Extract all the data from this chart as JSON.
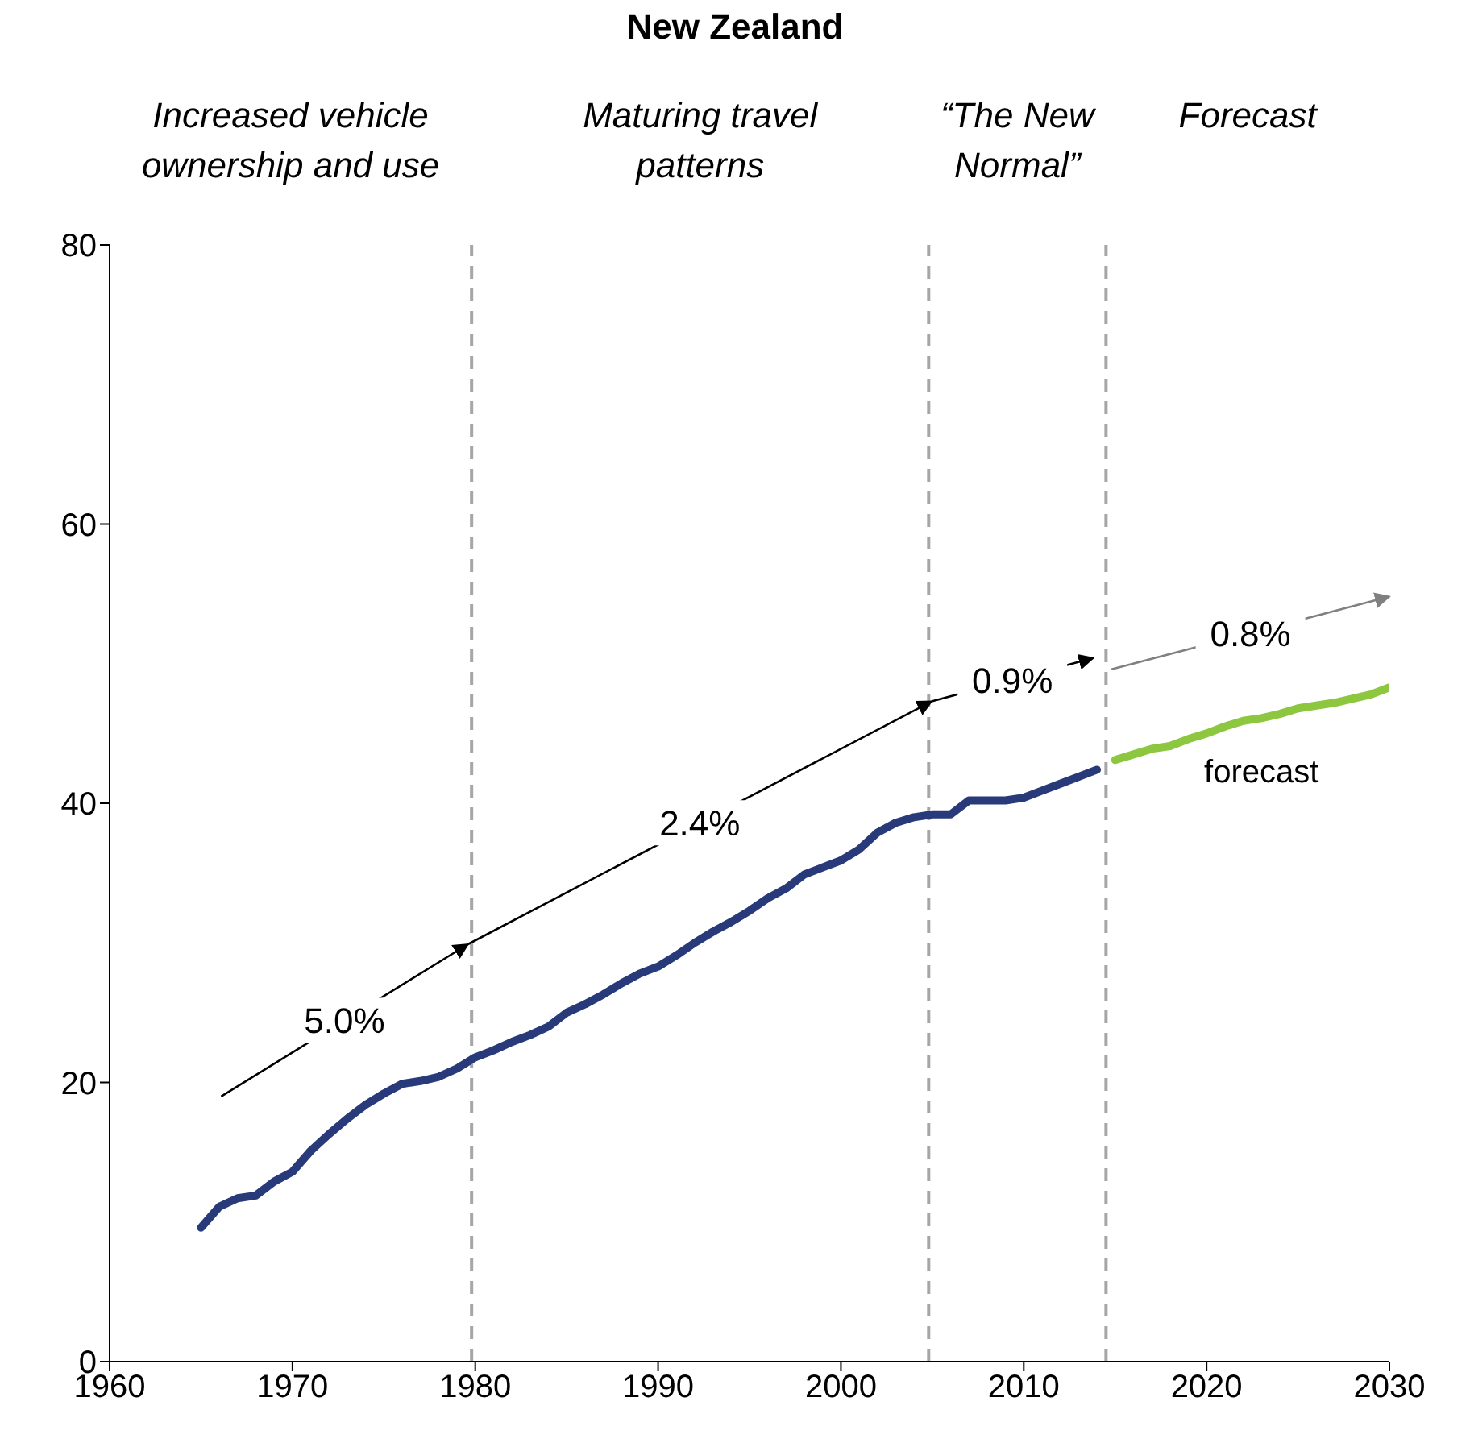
{
  "chart_data": {
    "type": "line",
    "title": "New Zealand",
    "xlim": [
      1960,
      2030
    ],
    "xticks": [
      1960,
      1970,
      1980,
      1990,
      2000,
      2010,
      2020,
      2030
    ],
    "ylim": [
      0,
      80
    ],
    "yticks": [
      0,
      20,
      40,
      60,
      80
    ],
    "marker": "none",
    "line_style": "solid",
    "series": [
      {
        "color": "#283a7a",
        "x": [
          1965,
          1966,
          1967,
          1968,
          1969,
          1970,
          1971,
          1972,
          1973,
          1974,
          1975,
          1976,
          1977,
          1978,
          1979,
          1980,
          1981,
          1982,
          1983,
          1984,
          1985,
          1986,
          1987,
          1988,
          1989,
          1990,
          1991,
          1992,
          1993,
          1994,
          1995,
          1996,
          1997,
          1998,
          1999,
          2000,
          2001,
          2002,
          2003,
          2004,
          2005,
          2006,
          2007,
          2008,
          2009,
          2010,
          2011,
          2012,
          2013,
          2014
        ],
        "values": [
          9.6,
          11.1,
          11.7,
          11.9,
          12.9,
          13.6,
          15.1,
          16.3,
          17.4,
          18.4,
          19.2,
          19.9,
          20.1,
          20.4,
          21.0,
          21.8,
          22.3,
          22.9,
          23.4,
          24.0,
          25.0,
          25.6,
          26.3,
          27.1,
          27.8,
          28.3,
          29.1,
          30.0,
          30.8,
          31.5,
          32.3,
          33.2,
          33.9,
          34.9,
          35.4,
          35.9,
          36.7,
          37.9,
          38.6,
          39.0,
          39.2,
          39.2,
          40.2,
          40.2,
          40.2,
          40.4,
          40.9,
          41.4,
          41.9,
          42.4
        ]
      },
      {
        "name": "forecast",
        "color": "#8dc63f",
        "x": [
          2015,
          2016,
          2017,
          2018,
          2019,
          2020,
          2021,
          2022,
          2023,
          2024,
          2025,
          2026,
          2027,
          2028,
          2029,
          2030
        ],
        "values": [
          43.1,
          43.5,
          43.9,
          44.1,
          44.6,
          45.0,
          45.5,
          45.9,
          46.1,
          46.4,
          46.8,
          47.0,
          47.2,
          47.5,
          47.8,
          48.3
        ]
      }
    ],
    "ref_lines": [
      {
        "axis": "x",
        "value": 1979.8,
        "color": "#a6a6a6",
        "line_style": "dashed"
      },
      {
        "axis": "x",
        "value": 2004.8,
        "color": "#a6a6a6",
        "line_style": "dashed"
      },
      {
        "axis": "x",
        "value": 2014.5,
        "color": "#a6a6a6",
        "line_style": "dashed"
      }
    ],
    "annotations": [
      "Increased vehicle ownership and use",
      "Maturing travel patterns",
      "“The New Normal”",
      "Forecast",
      "5.0%",
      "2.4%",
      "0.9%",
      "0.8%"
    ]
  }
}
